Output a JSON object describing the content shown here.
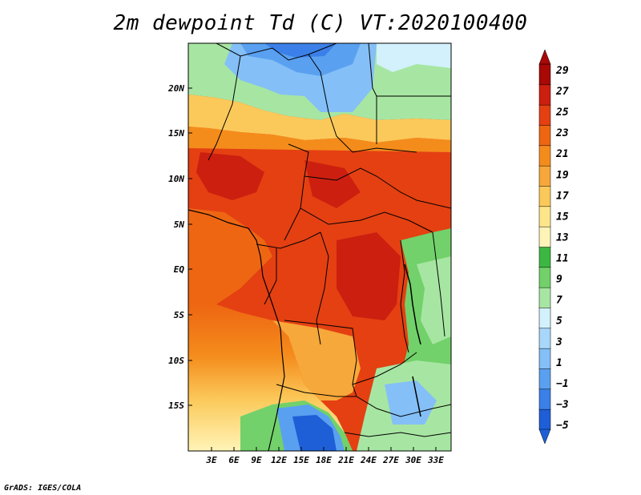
{
  "title": "2m dewpoint Td (C) VT:2020100400",
  "footer": "GrADS: IGES/COLA",
  "map": {
    "lat_ticks": [
      "20N",
      "15N",
      "10N",
      "5N",
      "EQ",
      "5S",
      "10S",
      "15S"
    ],
    "lon_ticks": [
      "3E",
      "6E",
      "9E",
      "12E",
      "15E",
      "18E",
      "21E",
      "24E",
      "27E",
      "30E",
      "33E"
    ],
    "lat_values": [
      20,
      15,
      10,
      5,
      0,
      -5,
      -10,
      -15
    ],
    "lon_values": [
      3,
      6,
      9,
      12,
      15,
      18,
      21,
      24,
      27,
      30,
      33
    ],
    "lon_range": [
      0,
      35
    ],
    "lat_range": [
      -20,
      25
    ]
  },
  "colorbar": {
    "labels": [
      "29",
      "27",
      "25",
      "23",
      "21",
      "19",
      "17",
      "15",
      "13",
      "11",
      "9",
      "7",
      "5",
      "3",
      "1",
      "−1",
      "−3",
      "−5"
    ],
    "colors": [
      "#1e5fd8",
      "#3b80e8",
      "#5aa0f0",
      "#84bff7",
      "#a8d7fb",
      "#d2f1fc",
      "#a7e6a2",
      "#72d16a",
      "#3cb842",
      "#fff4b8",
      "#fde68a",
      "#fbc95a",
      "#f7a83a",
      "#f48c1c",
      "#ee6612",
      "#e44012",
      "#cc1f10",
      "#a80806"
    ]
  },
  "legend": {
    "colors": {
      "deep_red": "#cc1f10",
      "orange_red": "#e44012",
      "orange": "#f48c1c",
      "light_orange": "#fbc95a",
      "yellow": "#fde68a",
      "green": "#3cb842",
      "light_blue": "#84bff7",
      "blue": "#1e5fd8"
    }
  }
}
